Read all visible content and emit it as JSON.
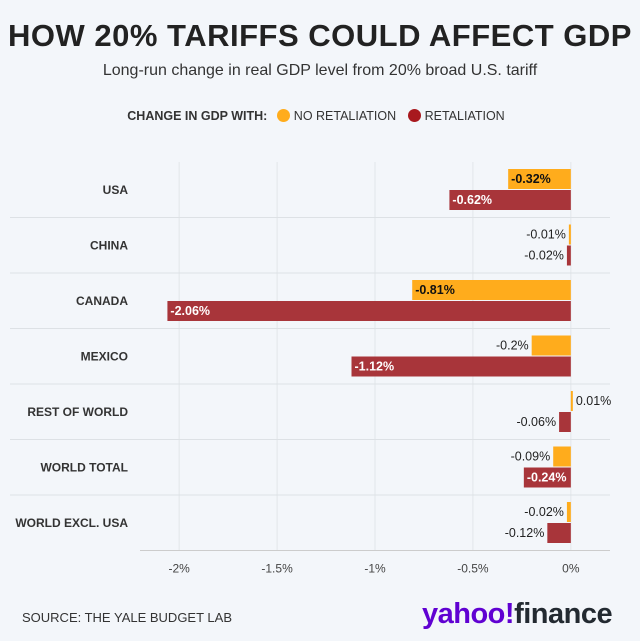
{
  "chart_data": {
    "type": "bar",
    "orientation": "horizontal",
    "title": "HOW 20% TARIFFS COULD AFFECT GDP",
    "subtitle": "Long-run change in real GDP level from 20% broad U.S. tariff",
    "legend_title": "CHANGE IN GDP WITH:",
    "categories": [
      "USA",
      "CHINA",
      "CANADA",
      "MEXICO",
      "REST OF WORLD",
      "WORLD TOTAL",
      "WORLD EXCL. USA"
    ],
    "series": [
      {
        "name": "NO RETALIATION",
        "color": "#ffac1c",
        "values": [
          -0.32,
          -0.01,
          -0.81,
          -0.2,
          0.01,
          -0.09,
          -0.02
        ],
        "labels": [
          "-0.32%",
          "-0.01%",
          "-0.81%",
          "-0.2%",
          "0.01%",
          "-0.09%",
          "-0.02%"
        ]
      },
      {
        "name": "RETALIATION",
        "color": "#a8353a",
        "values": [
          -0.62,
          -0.02,
          -2.06,
          -1.12,
          -0.06,
          -0.24,
          -0.12
        ],
        "labels": [
          "-0.62%",
          "-0.02%",
          "-2.06%",
          "-1.12%",
          "-0.06%",
          "-0.24%",
          "-0.12%"
        ]
      }
    ],
    "xlim": [
      -2.2,
      0.2
    ],
    "xticks": [
      -2,
      -1.5,
      -1,
      -0.5,
      0
    ],
    "xtick_labels": [
      "-2%",
      "-1.5%",
      "-1%",
      "-0.5%",
      "0%"
    ],
    "grid": true,
    "legend_position": "top-center"
  },
  "source": "SOURCE: THE YALE BUDGET LAB",
  "logo": {
    "brand": "yahoo!",
    "product": "finance"
  }
}
